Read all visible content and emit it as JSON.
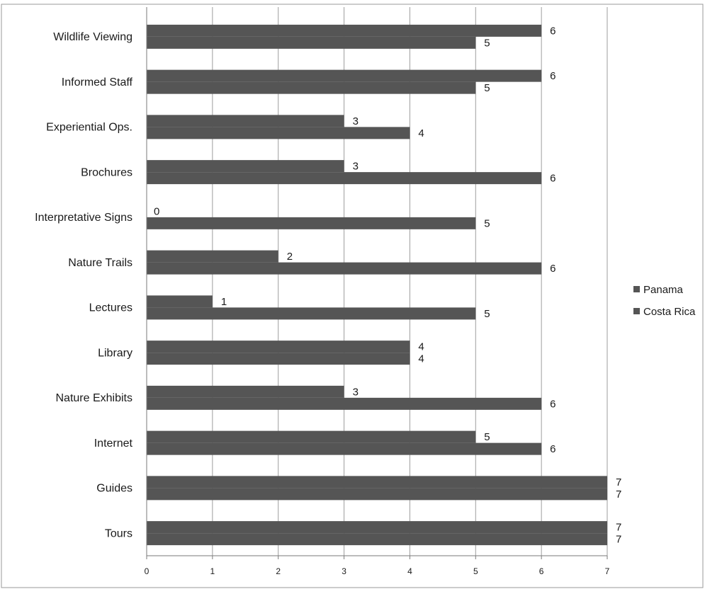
{
  "chart_data": {
    "type": "bar",
    "orientation": "horizontal",
    "title": "",
    "xlabel": "",
    "ylabel": "",
    "xlim": [
      0,
      7
    ],
    "xticks": [
      0,
      1,
      2,
      3,
      4,
      5,
      6,
      7
    ],
    "grid": true,
    "legend_position": "right",
    "categories": [
      "Wildlife Viewing",
      "Informed Staff",
      "Experiential Ops.",
      "Brochures",
      "Interpretative Signs",
      "Nature Trails",
      "Lectures",
      "Library",
      "Nature Exhibits",
      "Internet",
      "Guides",
      "Tours"
    ],
    "series": [
      {
        "name": "Panama",
        "color": "#555555",
        "values": [
          6,
          6,
          3,
          3,
          0,
          2,
          1,
          4,
          3,
          5,
          7,
          7
        ]
      },
      {
        "name": "Costa Rica",
        "color": "#555555",
        "values": [
          5,
          5,
          4,
          6,
          5,
          6,
          5,
          4,
          6,
          6,
          7,
          7
        ]
      }
    ]
  }
}
